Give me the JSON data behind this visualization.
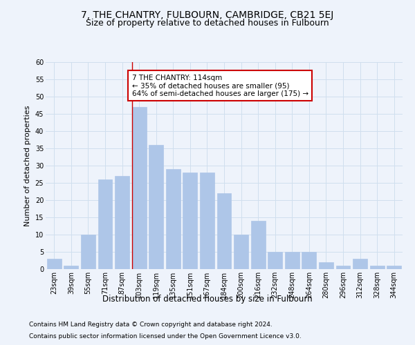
{
  "title": "7, THE CHANTRY, FULBOURN, CAMBRIDGE, CB21 5EJ",
  "subtitle": "Size of property relative to detached houses in Fulbourn",
  "xlabel": "Distribution of detached houses by size in Fulbourn",
  "ylabel": "Number of detached properties",
  "categories": [
    "23sqm",
    "39sqm",
    "55sqm",
    "71sqm",
    "87sqm",
    "103sqm",
    "119sqm",
    "135sqm",
    "151sqm",
    "167sqm",
    "184sqm",
    "200sqm",
    "216sqm",
    "232sqm",
    "248sqm",
    "264sqm",
    "280sqm",
    "296sqm",
    "312sqm",
    "328sqm",
    "344sqm"
  ],
  "values": [
    3,
    1,
    10,
    26,
    27,
    47,
    36,
    29,
    28,
    28,
    22,
    10,
    14,
    5,
    5,
    5,
    2,
    1,
    3,
    1,
    1
  ],
  "bar_color": "#aec6e8",
  "bar_edge_color": "#aec6e8",
  "highlight_bar_index": 5,
  "highlight_line_color": "#cc0000",
  "annotation_text": "7 THE CHANTRY: 114sqm\n← 35% of detached houses are smaller (95)\n64% of semi-detached houses are larger (175) →",
  "annotation_box_color": "#ffffff",
  "annotation_box_edge_color": "#cc0000",
  "ylim": [
    0,
    60
  ],
  "yticks": [
    0,
    5,
    10,
    15,
    20,
    25,
    30,
    35,
    40,
    45,
    50,
    55,
    60
  ],
  "grid_color": "#d0dfee",
  "background_color": "#eef3fb",
  "footer_line1": "Contains HM Land Registry data © Crown copyright and database right 2024.",
  "footer_line2": "Contains public sector information licensed under the Open Government Licence v3.0.",
  "title_fontsize": 10,
  "subtitle_fontsize": 9,
  "xlabel_fontsize": 8.5,
  "ylabel_fontsize": 8,
  "tick_fontsize": 7,
  "footer_fontsize": 6.5,
  "annotation_fontsize": 7.5
}
